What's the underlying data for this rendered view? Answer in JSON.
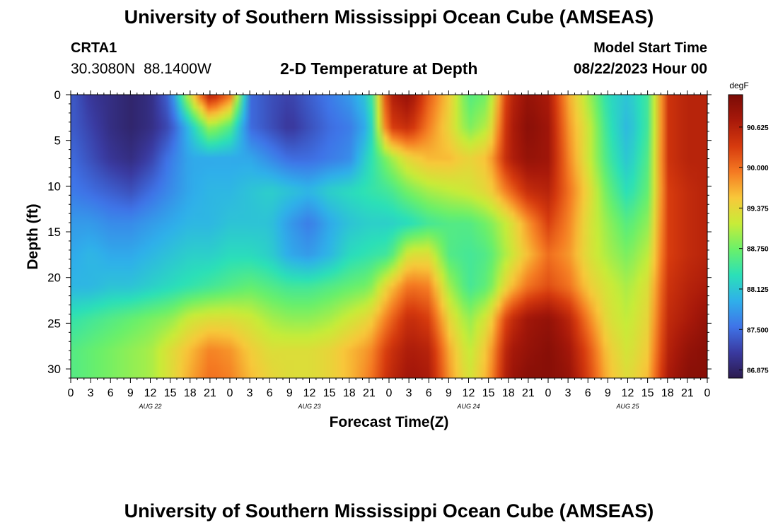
{
  "titles": {
    "main": "University of Southern Mississippi Ocean Cube (AMSEAS)",
    "repeat": "University of Southern Mississippi Ocean Cube (AMSEAS)"
  },
  "station": {
    "id": "CRTA1",
    "lat": "30.3080N",
    "lon": "88.1400W"
  },
  "model": {
    "start_label": "Model Start Time",
    "start_value": "08/22/2023 Hour 00"
  },
  "chart_data": {
    "type": "heatmap",
    "title": "2-D Temperature at Depth",
    "xlabel": "Forecast Time(Z)",
    "ylabel": "Depth (ft)",
    "x_hours_range": [
      0,
      96
    ],
    "x_tick_step_hours": 3,
    "x_tick_labels": [
      "0",
      "3",
      "6",
      "9",
      "12",
      "15",
      "18",
      "21",
      "0",
      "3",
      "6",
      "9",
      "12",
      "15",
      "18",
      "21",
      "0",
      "3",
      "6",
      "9",
      "12",
      "15",
      "18",
      "21",
      "0",
      "3",
      "6",
      "9",
      "12",
      "15",
      "18",
      "21",
      "0"
    ],
    "date_labels": [
      {
        "text": "AUG 22",
        "hour": 12
      },
      {
        "text": "AUG 23",
        "hour": 36
      },
      {
        "text": "AUG 24",
        "hour": 60
      },
      {
        "text": "AUG 25",
        "hour": 84
      }
    ],
    "y_range": [
      0,
      31
    ],
    "y_ticks": [
      0,
      5,
      10,
      15,
      20,
      25,
      30
    ],
    "colorbar": {
      "unit": "degF",
      "min": 86.75,
      "max": 91.125,
      "ticks": [
        "86.875",
        "87.500",
        "88.125",
        "88.750",
        "89.375",
        "90.000",
        "90.625"
      ],
      "colors": [
        "#2b1a4e",
        "#3a3aa0",
        "#3f74e8",
        "#2fb0ea",
        "#2be0b8",
        "#6af06a",
        "#c8ec38",
        "#f8c83a",
        "#f57a22",
        "#d63a0e",
        "#a8190a",
        "#7a0b06"
      ]
    },
    "depth_rows_ft": [
      0,
      3.5,
      7,
      10.5,
      14,
      17.5,
      21,
      24.5,
      28,
      31
    ],
    "time_cols_hours": [
      0,
      3,
      6,
      9,
      12,
      15,
      18,
      21,
      24,
      27,
      30,
      33,
      36,
      39,
      42,
      45,
      48,
      51,
      54,
      57,
      60,
      63,
      66,
      69,
      72,
      75,
      78,
      81,
      84,
      87,
      90,
      93,
      96
    ],
    "values_degF": [
      [
        87.4,
        87.1,
        87.0,
        86.9,
        87.0,
        87.5,
        89.3,
        90.7,
        90.0,
        87.5,
        87.3,
        87.2,
        87.4,
        87.6,
        87.8,
        88.2,
        90.6,
        90.9,
        90.1,
        89.5,
        88.6,
        88.8,
        90.5,
        90.9,
        90.7,
        89.7,
        89.0,
        88.3,
        88.1,
        88.5,
        90.4,
        90.6,
        90.6
      ],
      [
        87.4,
        87.2,
        87.0,
        86.9,
        87.0,
        87.3,
        88.1,
        89.0,
        88.6,
        87.5,
        87.3,
        87.1,
        87.3,
        87.5,
        87.6,
        88.0,
        90.3,
        90.5,
        89.9,
        89.4,
        88.8,
        89.1,
        90.6,
        91.0,
        90.8,
        89.8,
        89.2,
        88.4,
        88.0,
        88.5,
        90.4,
        90.6,
        90.6
      ],
      [
        87.5,
        87.3,
        87.1,
        87.0,
        87.2,
        87.6,
        87.9,
        87.9,
        87.9,
        87.9,
        87.7,
        87.5,
        87.5,
        87.6,
        87.7,
        88.3,
        88.9,
        89.4,
        89.6,
        89.6,
        89.4,
        89.6,
        90.6,
        90.9,
        90.8,
        89.9,
        89.2,
        88.5,
        88.1,
        88.6,
        90.4,
        90.6,
        90.6
      ],
      [
        87.6,
        87.5,
        87.4,
        87.3,
        87.5,
        87.7,
        87.9,
        88.0,
        88.0,
        88.1,
        88.2,
        88.1,
        88.0,
        88.2,
        88.3,
        88.4,
        88.5,
        88.8,
        89.0,
        89.1,
        89.2,
        89.4,
        90.0,
        90.5,
        90.6,
        90.0,
        89.4,
        88.7,
        88.3,
        88.7,
        90.3,
        90.5,
        90.6
      ],
      [
        87.8,
        87.8,
        87.7,
        87.7,
        87.8,
        87.9,
        88.0,
        88.0,
        88.1,
        88.1,
        88.1,
        87.8,
        87.6,
        87.9,
        88.1,
        88.2,
        88.2,
        88.3,
        88.5,
        88.6,
        88.6,
        88.8,
        89.2,
        89.8,
        90.3,
        89.9,
        89.3,
        88.9,
        88.6,
        88.9,
        90.3,
        90.5,
        90.6
      ],
      [
        87.9,
        88.0,
        87.9,
        87.9,
        88.0,
        88.1,
        88.2,
        88.2,
        88.3,
        88.3,
        88.2,
        87.9,
        87.8,
        88.0,
        88.3,
        88.4,
        88.5,
        89.3,
        89.3,
        88.6,
        88.5,
        88.6,
        89.1,
        89.6,
        90.0,
        89.8,
        89.3,
        89.0,
        88.8,
        89.1,
        90.3,
        90.5,
        90.6
      ],
      [
        88.0,
        88.0,
        88.1,
        88.1,
        88.2,
        88.3,
        88.4,
        88.5,
        88.6,
        88.7,
        88.6,
        88.5,
        88.5,
        88.6,
        88.7,
        88.8,
        89.5,
        90.0,
        89.9,
        89.0,
        88.5,
        88.7,
        89.5,
        90.0,
        90.2,
        90.0,
        89.5,
        89.2,
        89.0,
        89.3,
        90.4,
        90.6,
        90.7
      ],
      [
        88.4,
        88.5,
        88.6,
        88.7,
        88.8,
        88.9,
        89.2,
        89.3,
        89.3,
        89.2,
        89.0,
        88.9,
        88.9,
        89.0,
        89.2,
        89.4,
        90.0,
        90.5,
        90.3,
        89.4,
        88.9,
        89.3,
        90.4,
        90.8,
        90.9,
        90.6,
        89.9,
        89.3,
        89.1,
        89.4,
        90.5,
        90.7,
        90.9
      ],
      [
        88.6,
        88.7,
        88.8,
        88.9,
        89.0,
        89.3,
        89.6,
        89.9,
        89.8,
        89.5,
        89.3,
        89.3,
        89.3,
        89.4,
        89.6,
        89.8,
        90.4,
        90.7,
        90.6,
        89.7,
        89.1,
        89.6,
        90.7,
        90.9,
        91.0,
        90.8,
        90.2,
        89.5,
        89.2,
        89.5,
        90.6,
        90.9,
        91.0
      ],
      [
        88.6,
        88.7,
        88.8,
        88.9,
        89.0,
        89.3,
        89.7,
        90.0,
        89.9,
        89.6,
        89.4,
        89.3,
        89.3,
        89.4,
        89.6,
        89.9,
        90.5,
        90.8,
        90.7,
        89.8,
        89.2,
        89.7,
        90.8,
        91.0,
        91.0,
        90.9,
        90.3,
        89.6,
        89.3,
        89.6,
        90.7,
        91.0,
        91.0
      ]
    ]
  }
}
